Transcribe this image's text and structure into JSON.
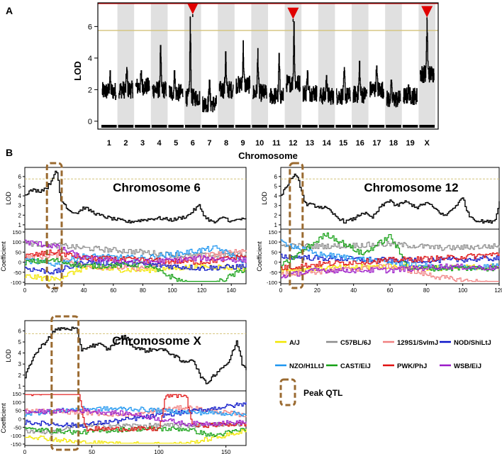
{
  "panel_labels": {
    "a": "A",
    "b": "B"
  },
  "legend": {
    "items": [
      {
        "label": "A/J",
        "color": "#f2e600"
      },
      {
        "label": "C57BL/6J",
        "color": "#8c8c8c"
      },
      {
        "label": "129S1/SvImJ",
        "color": "#f08080"
      },
      {
        "label": "NOD/ShiLtJ",
        "color": "#0a14c8"
      },
      {
        "label": "NZO/H1LtJ",
        "color": "#1e96f0"
      },
      {
        "label": "CAST/EiJ",
        "color": "#14a014"
      },
      {
        "label": "PWK/PhJ",
        "color": "#e01010"
      },
      {
        "label": "WSB/EiJ",
        "color": "#9b19c8"
      }
    ],
    "peak_label": "Peak QTL",
    "peak_color": "#9a6a30"
  },
  "chart_data": [
    {
      "type": "line",
      "panel": "A",
      "xlabel": "Chromosome",
      "ylabel": "LOD",
      "categories": [
        "1",
        "2",
        "3",
        "4",
        "5",
        "6",
        "7",
        "8",
        "9",
        "10",
        "11",
        "12",
        "13",
        "14",
        "15",
        "16",
        "17",
        "18",
        "19",
        "X"
      ],
      "ylim": [
        0,
        7.5
      ],
      "yticks": [
        0,
        2,
        4,
        6
      ],
      "thresholds": [
        {
          "value": 5.75,
          "color": "#d4c27a"
        },
        {
          "value": 7.45,
          "color": "#d01818"
        }
      ],
      "peaks": [
        {
          "chromosome": "6",
          "lod": 6.6
        },
        {
          "chromosome": "12",
          "lod": 6.3
        },
        {
          "chromosome": "X",
          "lod": 6.4
        }
      ],
      "peak_marker_color": "#e00000",
      "chromosome_lod_summary": [
        {
          "chr": "1",
          "base": 1.9,
          "max": 3.2
        },
        {
          "chr": "2",
          "base": 2.0,
          "max": 3.4
        },
        {
          "chr": "3",
          "base": 2.2,
          "max": 3.2
        },
        {
          "chr": "4",
          "base": 2.0,
          "max": 4.8
        },
        {
          "chr": "5",
          "base": 1.8,
          "max": 3.2
        },
        {
          "chr": "6",
          "base": 1.5,
          "max": 6.6
        },
        {
          "chr": "7",
          "base": 1.1,
          "max": 2.6
        },
        {
          "chr": "8",
          "base": 2.0,
          "max": 4.4
        },
        {
          "chr": "9",
          "base": 2.3,
          "max": 5.1
        },
        {
          "chr": "10",
          "base": 1.8,
          "max": 4.6
        },
        {
          "chr": "11",
          "base": 1.6,
          "max": 4.3
        },
        {
          "chr": "12",
          "base": 2.4,
          "max": 6.3
        },
        {
          "chr": "13",
          "base": 1.8,
          "max": 3.2
        },
        {
          "chr": "14",
          "base": 1.6,
          "max": 2.9
        },
        {
          "chr": "15",
          "base": 1.6,
          "max": 3.4
        },
        {
          "chr": "16",
          "base": 1.7,
          "max": 3.8
        },
        {
          "chr": "17",
          "base": 2.0,
          "max": 3.5
        },
        {
          "chr": "18",
          "base": 1.4,
          "max": 2.6
        },
        {
          "chr": "19",
          "base": 1.6,
          "max": 2.3
        },
        {
          "chr": "X",
          "base": 3.0,
          "max": 6.4
        }
      ]
    },
    {
      "type": "line",
      "panel": "B",
      "title": "Chromosome 6",
      "lod_ylabel": "LOD",
      "coef_ylabel": "Coefficient",
      "xlim": [
        0,
        150
      ],
      "xticks": [
        0,
        20,
        40,
        60,
        80,
        100,
        120,
        140
      ],
      "lod_ylim": [
        1,
        6.5
      ],
      "lod_yticks": [
        1,
        2,
        3,
        4,
        5,
        6
      ],
      "coef_ylim": [
        -100,
        150
      ],
      "coef_yticks": [
        -100,
        -50,
        0,
        50,
        100,
        150
      ],
      "threshold": 5.75,
      "peak_region": [
        15,
        25
      ],
      "lod_knots": [
        [
          0,
          4.2
        ],
        [
          5,
          4.6
        ],
        [
          10,
          4.5
        ],
        [
          15,
          4.9
        ],
        [
          18,
          5.6
        ],
        [
          20,
          6.5
        ],
        [
          22,
          6.2
        ],
        [
          24,
          3.6
        ],
        [
          27,
          3.1
        ],
        [
          30,
          2.5
        ],
        [
          35,
          2.2
        ],
        [
          40,
          2.8
        ],
        [
          45,
          2.4
        ],
        [
          50,
          2.0
        ],
        [
          60,
          1.6
        ],
        [
          70,
          1.3
        ],
        [
          80,
          1.5
        ],
        [
          90,
          1.7
        ],
        [
          100,
          1.5
        ],
        [
          110,
          1.9
        ],
        [
          118,
          3.0
        ],
        [
          122,
          1.8
        ],
        [
          128,
          1.2
        ],
        [
          135,
          1.8
        ],
        [
          140,
          1.3
        ],
        [
          145,
          1.6
        ],
        [
          150,
          1.5
        ]
      ],
      "coef_knots": [
        [
          [
            0,
            -70
          ],
          [
            20,
            -85
          ],
          [
            40,
            -30
          ],
          [
            80,
            -40
          ],
          [
            120,
            -20
          ],
          [
            150,
            -30
          ]
        ],
        [
          [
            0,
            95
          ],
          [
            20,
            85
          ],
          [
            40,
            70
          ],
          [
            80,
            50
          ],
          [
            110,
            30
          ],
          [
            150,
            40
          ]
        ],
        [
          [
            0,
            20
          ],
          [
            20,
            35
          ],
          [
            40,
            -20
          ],
          [
            80,
            -30
          ],
          [
            120,
            30
          ],
          [
            150,
            60
          ]
        ],
        [
          [
            0,
            -30
          ],
          [
            20,
            -50
          ],
          [
            40,
            0
          ],
          [
            80,
            -10
          ],
          [
            120,
            -30
          ],
          [
            150,
            -20
          ]
        ],
        [
          [
            0,
            10
          ],
          [
            20,
            -10
          ],
          [
            40,
            30
          ],
          [
            80,
            20
          ],
          [
            130,
            70
          ],
          [
            150,
            0
          ]
        ],
        [
          [
            0,
            0
          ],
          [
            20,
            10
          ],
          [
            40,
            -20
          ],
          [
            80,
            -10
          ],
          [
            120,
            -140
          ],
          [
            150,
            -30
          ]
        ],
        [
          [
            0,
            30
          ],
          [
            20,
            50
          ],
          [
            40,
            20
          ],
          [
            80,
            10
          ],
          [
            120,
            0
          ],
          [
            150,
            30
          ]
        ],
        [
          [
            0,
            100
          ],
          [
            20,
            80
          ],
          [
            40,
            20
          ],
          [
            80,
            0
          ],
          [
            120,
            20
          ],
          [
            150,
            10
          ]
        ]
      ]
    },
    {
      "type": "line",
      "panel": "B",
      "title": "Chromosome 12",
      "lod_ylabel": "LOD",
      "coef_ylabel": "Coefficient",
      "xlim": [
        0,
        120
      ],
      "xticks": [
        0,
        20,
        40,
        60,
        80,
        100,
        120
      ],
      "lod_ylim": [
        1,
        6.5
      ],
      "lod_yticks": [
        1,
        2,
        3,
        4,
        5,
        6
      ],
      "coef_ylim": [
        -100,
        150
      ],
      "coef_yticks": [
        -100,
        -50,
        0,
        50,
        100,
        150
      ],
      "threshold": 5.75,
      "peak_region": [
        5,
        12
      ],
      "lod_knots": [
        [
          0,
          4.1
        ],
        [
          3,
          5.0
        ],
        [
          5,
          5.6
        ],
        [
          7,
          6.2
        ],
        [
          9,
          5.8
        ],
        [
          11,
          4.8
        ],
        [
          13,
          3.2
        ],
        [
          18,
          3.0
        ],
        [
          25,
          2.7
        ],
        [
          30,
          1.9
        ],
        [
          35,
          1.3
        ],
        [
          40,
          1.6
        ],
        [
          45,
          2.3
        ],
        [
          50,
          1.7
        ],
        [
          55,
          2.9
        ],
        [
          60,
          3.6
        ],
        [
          63,
          2.9
        ],
        [
          68,
          3.4
        ],
        [
          75,
          2.8
        ],
        [
          80,
          3.3
        ],
        [
          85,
          2.6
        ],
        [
          90,
          1.9
        ],
        [
          95,
          2.8
        ],
        [
          100,
          3.8
        ],
        [
          103,
          2.0
        ],
        [
          108,
          1.4
        ],
        [
          115,
          1.3
        ],
        [
          118,
          1.6
        ],
        [
          120,
          3.6
        ]
      ],
      "coef_knots": [
        [
          [
            0,
            -40
          ],
          [
            20,
            -30
          ],
          [
            60,
            -20
          ],
          [
            90,
            -30
          ],
          [
            120,
            -20
          ]
        ],
        [
          [
            0,
            80
          ],
          [
            30,
            80
          ],
          [
            60,
            90
          ],
          [
            90,
            70
          ],
          [
            120,
            80
          ]
        ],
        [
          [
            0,
            -60
          ],
          [
            30,
            -40
          ],
          [
            60,
            -20
          ],
          [
            90,
            -80
          ],
          [
            120,
            -110
          ]
        ],
        [
          [
            0,
            30
          ],
          [
            20,
            20
          ],
          [
            60,
            10
          ],
          [
            90,
            10
          ],
          [
            120,
            20
          ]
        ],
        [
          [
            0,
            100
          ],
          [
            20,
            40
          ],
          [
            60,
            0
          ],
          [
            90,
            -30
          ],
          [
            120,
            -20
          ]
        ],
        [
          [
            0,
            -20
          ],
          [
            25,
            140
          ],
          [
            45,
            40
          ],
          [
            60,
            130
          ],
          [
            70,
            -30
          ],
          [
            120,
            -30
          ]
        ],
        [
          [
            0,
            -30
          ],
          [
            20,
            -10
          ],
          [
            60,
            10
          ],
          [
            90,
            20
          ],
          [
            120,
            40
          ]
        ],
        [
          [
            0,
            -70
          ],
          [
            20,
            -40
          ],
          [
            60,
            -40
          ],
          [
            90,
            -20
          ],
          [
            120,
            -30
          ]
        ]
      ]
    },
    {
      "type": "line",
      "panel": "B",
      "title": "Chromosome X",
      "lod_ylabel": "LOD",
      "coef_ylabel": "Coefficient",
      "xlim": [
        0,
        165
      ],
      "xticks": [
        0,
        50,
        100,
        150
      ],
      "lod_ylim": [
        1,
        6.5
      ],
      "lod_yticks": [
        1,
        2,
        3,
        4,
        5,
        6
      ],
      "coef_ylim": [
        -150,
        150
      ],
      "coef_yticks": [
        -150,
        -100,
        -50,
        0,
        50,
        100,
        150
      ],
      "threshold": 5.75,
      "peak_region": [
        20,
        40
      ],
      "lod_knots": [
        [
          0,
          1.8
        ],
        [
          5,
          3.4
        ],
        [
          10,
          4.3
        ],
        [
          15,
          5.0
        ],
        [
          20,
          5.8
        ],
        [
          25,
          6.2
        ],
        [
          30,
          6.2
        ],
        [
          38,
          6.2
        ],
        [
          42,
          4.3
        ],
        [
          48,
          4.6
        ],
        [
          55,
          4.8
        ],
        [
          62,
          4.3
        ],
        [
          70,
          5.3
        ],
        [
          75,
          5.5
        ],
        [
          80,
          4.6
        ],
        [
          90,
          4.2
        ],
        [
          100,
          4.4
        ],
        [
          110,
          3.9
        ],
        [
          118,
          3.1
        ],
        [
          125,
          3.5
        ],
        [
          130,
          2.1
        ],
        [
          135,
          1.2
        ],
        [
          140,
          1.9
        ],
        [
          145,
          2.5
        ],
        [
          152,
          3.2
        ],
        [
          158,
          5.1
        ],
        [
          162,
          3.0
        ],
        [
          165,
          2.5
        ]
      ],
      "coef_knots": [
        [
          [
            0,
            -100
          ],
          [
            20,
            -120
          ],
          [
            40,
            -140
          ],
          [
            80,
            -150
          ],
          [
            120,
            -150
          ],
          [
            165,
            -70
          ]
        ],
        [
          [
            0,
            -70
          ],
          [
            20,
            -80
          ],
          [
            40,
            -40
          ],
          [
            80,
            -40
          ],
          [
            120,
            -40
          ],
          [
            165,
            -30
          ]
        ],
        [
          [
            0,
            50
          ],
          [
            40,
            40
          ],
          [
            80,
            20
          ],
          [
            100,
            50
          ],
          [
            120,
            70
          ],
          [
            165,
            20
          ]
        ],
        [
          [
            0,
            -20
          ],
          [
            40,
            -40
          ],
          [
            80,
            0
          ],
          [
            120,
            40
          ],
          [
            165,
            90
          ]
        ],
        [
          [
            0,
            30
          ],
          [
            40,
            60
          ],
          [
            80,
            60
          ],
          [
            120,
            40
          ],
          [
            165,
            30
          ]
        ],
        [
          [
            0,
            -60
          ],
          [
            40,
            -80
          ],
          [
            80,
            -60
          ],
          [
            120,
            -60
          ],
          [
            140,
            -100
          ],
          [
            165,
            -60
          ]
        ],
        [
          [
            0,
            150
          ],
          [
            20,
            160
          ],
          [
            40,
            160
          ],
          [
            45,
            -60
          ],
          [
            100,
            -60
          ],
          [
            105,
            140
          ],
          [
            120,
            140
          ],
          [
            125,
            -40
          ],
          [
            165,
            -30
          ]
        ],
        [
          [
            0,
            40
          ],
          [
            40,
            50
          ],
          [
            80,
            30
          ],
          [
            120,
            -30
          ],
          [
            165,
            -20
          ]
        ]
      ]
    }
  ]
}
